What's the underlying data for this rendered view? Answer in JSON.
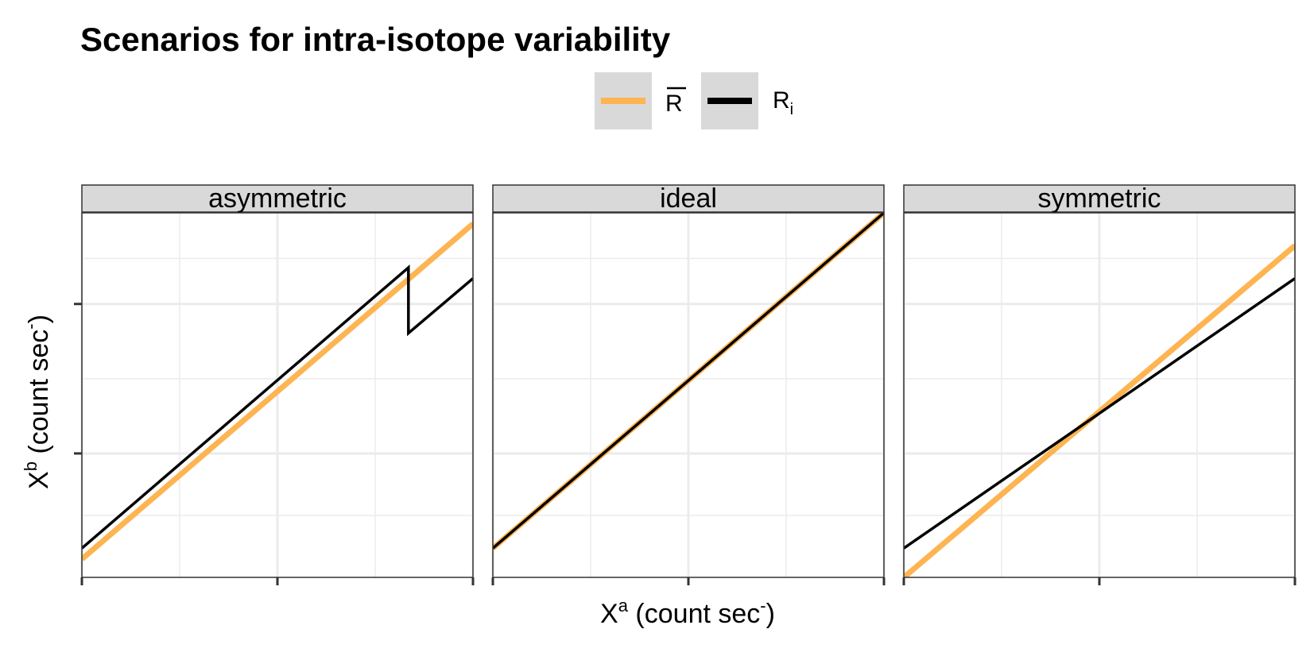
{
  "chart_data": {
    "type": "line",
    "title": "Scenarios for intra-isotope variability",
    "xlabel": {
      "base": "X",
      "sup": "a",
      "rest": " (count sec",
      "unit_sup": "-",
      "close": ")"
    },
    "ylabel": {
      "base": "X",
      "sup": "b",
      "rest": " (count sec",
      "unit_sup": "-",
      "close": ")"
    },
    "legend": {
      "position": "top",
      "entries": [
        {
          "label": "R",
          "decoration": "overline",
          "color": "#FDB451"
        },
        {
          "label": "R",
          "subscript": "i",
          "color": "#000000"
        }
      ]
    },
    "xlim": [
      0,
      1
    ],
    "ylim": [
      0,
      1
    ],
    "x_ticks": [
      0,
      0.5,
      1
    ],
    "y_ticks": [
      0.34,
      0.75
    ],
    "grid": true,
    "panels": [
      {
        "name": "asymmetric",
        "series": [
          {
            "key": "mean",
            "segments": [
              [
                [
                  0,
                  0.05
                ],
                [
                  1,
                  0.97
                ]
              ]
            ]
          },
          {
            "key": "individual",
            "segments": [
              [
                [
                  0,
                  0.08
                ],
                [
                  0.835,
                  0.85
                ],
                [
                  0.835,
                  0.67
                ],
                [
                  1,
                  0.82
                ]
              ]
            ]
          }
        ]
      },
      {
        "name": "ideal",
        "series": [
          {
            "key": "mean",
            "segments": [
              [
                [
                  0,
                  0.08
                ],
                [
                  1,
                  1.0
                ]
              ]
            ]
          },
          {
            "key": "individual",
            "segments": [
              [
                [
                  0,
                  0.08
                ],
                [
                  1,
                  1.0
                ]
              ]
            ]
          }
        ]
      },
      {
        "name": "symmetric",
        "series": [
          {
            "key": "mean",
            "segments": [
              [
                [
                  0,
                  0.0
                ],
                [
                  1,
                  0.91
                ]
              ]
            ]
          },
          {
            "key": "individual",
            "segments": [
              [
                [
                  0,
                  0.08
                ],
                [
                  1,
                  0.82
                ]
              ]
            ]
          }
        ]
      }
    ]
  }
}
